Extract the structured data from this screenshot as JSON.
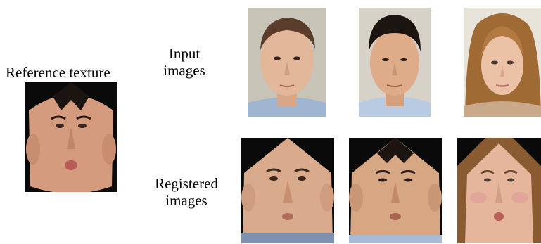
{
  "labels": {
    "reference": "Reference texture",
    "input_line1": "Input",
    "input_line2": "images",
    "registered_line1": "Registered",
    "registered_line2": "images"
  },
  "images": {
    "reference": "reference-texture-face",
    "inputs": [
      "input-face-man-1",
      "input-face-man-2",
      "input-face-woman"
    ],
    "registered": [
      "registered-face-1",
      "registered-face-2",
      "registered-face-3"
    ]
  },
  "colors": {
    "background": "#ffffff",
    "skin_light": "#e2b79a",
    "skin_warm": "#d49b7e",
    "hair_dark": "#1c1410",
    "hair_blond": "#a06a35",
    "texture_bg": "#0a0a0a"
  }
}
